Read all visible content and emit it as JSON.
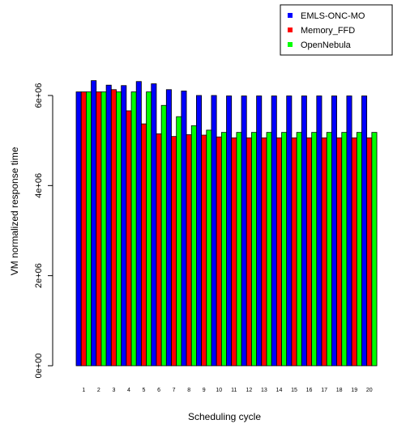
{
  "chart_data": {
    "type": "bar",
    "xlabel": "Scheduling cycle",
    "ylabel": "VM normalized response time",
    "categories": [
      "1",
      "2",
      "3",
      "4",
      "5",
      "6",
      "7",
      "8",
      "9",
      "10",
      "11",
      "12",
      "13",
      "14",
      "15",
      "16",
      "17",
      "18",
      "19",
      "20"
    ],
    "ylim": [
      0,
      6600000
    ],
    "yticks": [
      {
        "value": 0,
        "label": "0e+00"
      },
      {
        "value": 2000000,
        "label": "2e+06"
      },
      {
        "value": 4000000,
        "label": "4e+06"
      },
      {
        "value": 6000000,
        "label": "6e+06"
      }
    ],
    "legend_position": "top-right",
    "series": [
      {
        "name": "EMLS-ONC-MO",
        "color": "#0000ff",
        "values": [
          6080000,
          6330000,
          6230000,
          6220000,
          6310000,
          6260000,
          6130000,
          6100000,
          6000000,
          6000000,
          5990000,
          5990000,
          5990000,
          5990000,
          5990000,
          5990000,
          5990000,
          5990000,
          5990000,
          5990000
        ]
      },
      {
        "name": "Memory_FFD",
        "color": "#ff0000",
        "values": [
          6080000,
          6080000,
          6130000,
          5660000,
          5370000,
          5150000,
          5090000,
          5130000,
          5120000,
          5080000,
          5060000,
          5060000,
          5060000,
          5060000,
          5060000,
          5060000,
          5060000,
          5060000,
          5060000,
          5060000
        ]
      },
      {
        "name": "OpenNebula",
        "color": "#00ff00",
        "values": [
          6080000,
          6080000,
          6080000,
          6080000,
          6080000,
          5780000,
          5530000,
          5330000,
          5230000,
          5180000,
          5180000,
          5180000,
          5180000,
          5180000,
          5180000,
          5180000,
          5180000,
          5180000,
          5180000,
          5180000
        ]
      }
    ]
  }
}
